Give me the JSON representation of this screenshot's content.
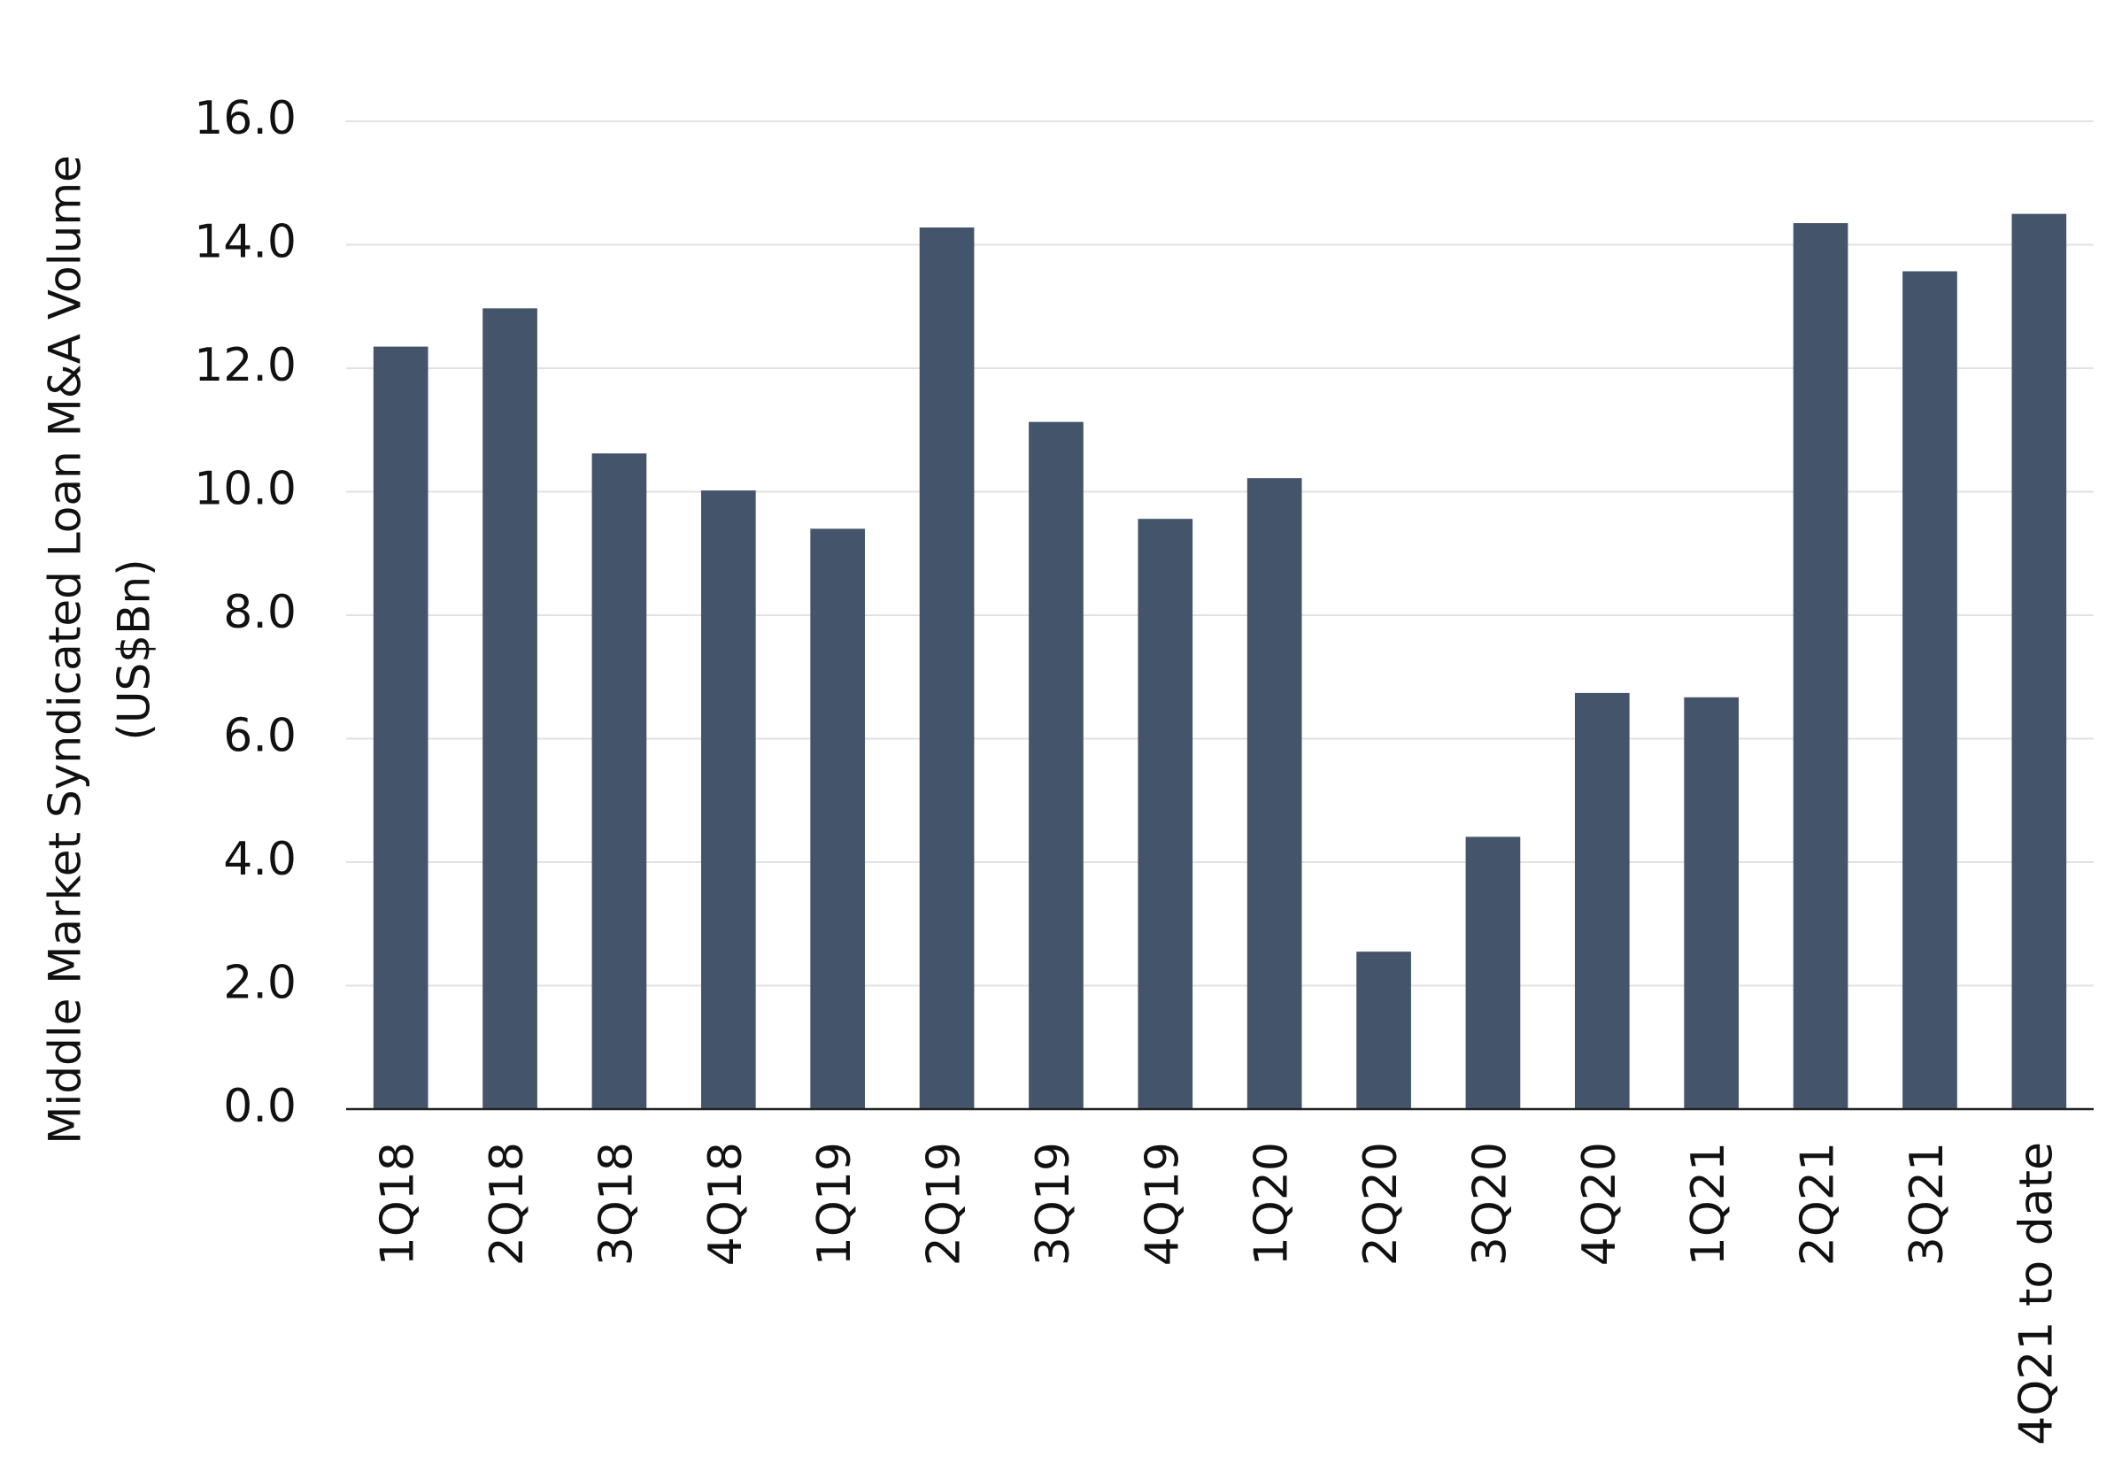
{
  "chart_data": {
    "type": "bar",
    "y_label": [
      "Middle Market Syndicated Loan M&A Volume",
      "(US$Bn)"
    ],
    "categories": [
      "1Q18",
      "2Q18",
      "3Q18",
      "4Q18",
      "1Q19",
      "2Q19",
      "3Q19",
      "4Q19",
      "1Q20",
      "2Q20",
      "3Q20",
      "4Q20",
      "1Q21",
      "2Q21",
      "3Q21",
      "4Q21 to date"
    ],
    "values": [
      12.35,
      12.97,
      10.62,
      10.02,
      9.4,
      14.28,
      11.13,
      9.56,
      10.22,
      2.55,
      4.41,
      6.74,
      6.67,
      14.35,
      13.57,
      14.5
    ],
    "color": "#44546a",
    "ylim": [
      0,
      16
    ],
    "yticks": [
      {
        "value": 0,
        "label": "0.0"
      },
      {
        "value": 2,
        "label": "2.0"
      },
      {
        "value": 4,
        "label": "4.0"
      },
      {
        "value": 6,
        "label": "6.0"
      },
      {
        "value": 8,
        "label": "8.0"
      },
      {
        "value": 10,
        "label": "10.0"
      },
      {
        "value": 12,
        "label": "12.0"
      },
      {
        "value": 14,
        "label": "14.0"
      },
      {
        "value": 16,
        "label": "16.0"
      }
    ],
    "grid": true
  }
}
